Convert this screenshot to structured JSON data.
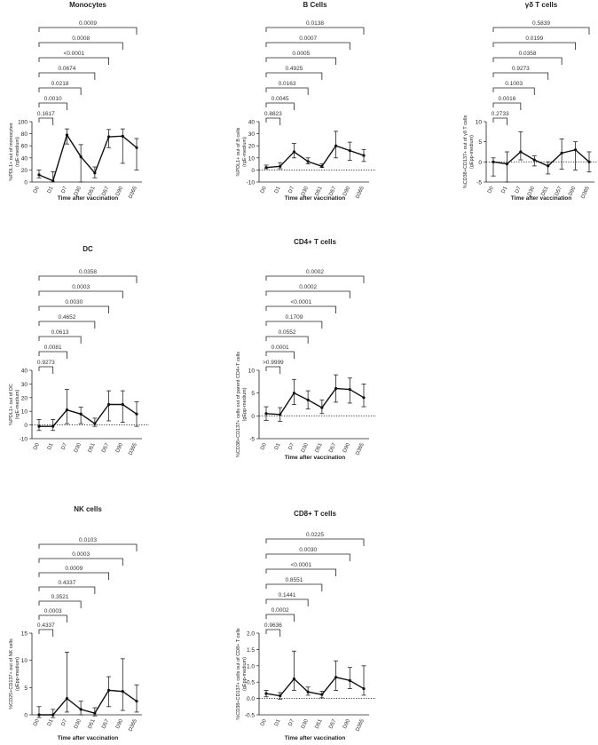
{
  "chart_data": [
    {
      "type": "line",
      "title": "Monocytes",
      "ylabel_lines": [
        "%PDL1+ out of monocytes",
        "(rgE-medium)"
      ],
      "xlabel": "Time after vaccination",
      "categories": [
        "D0",
        "D1",
        "D7",
        "D30",
        "D51",
        "D57",
        "D90",
        "D365"
      ],
      "values": [
        12,
        2,
        78,
        42,
        15,
        75,
        76,
        57
      ],
      "err_low": [
        5,
        2,
        15,
        42,
        8,
        18,
        45,
        37
      ],
      "err_high": [
        8,
        15,
        10,
        20,
        10,
        12,
        12,
        15
      ],
      "ylim": [
        0,
        100
      ],
      "yticks": [
        "0",
        "20",
        "40",
        "60",
        "80",
        "100"
      ],
      "zero_line": false,
      "comparisons": [
        {
          "to": "D1",
          "p": "0.1617"
        },
        {
          "to": "D7",
          "p": "0.0010"
        },
        {
          "to": "D30",
          "p": "0.0218"
        },
        {
          "to": "D51",
          "p": "0.0674"
        },
        {
          "to": "D57",
          "p": "<0.0001"
        },
        {
          "to": "D90",
          "p": "0.0008"
        },
        {
          "to": "D365",
          "p": "0.0009"
        }
      ]
    },
    {
      "type": "line",
      "title": "B Cells",
      "ylabel_lines": [
        "%PDL1+ out of B cells",
        "(rgE-medium)"
      ],
      "xlabel": "Time after vaccination",
      "categories": [
        "D0",
        "D1",
        "D7",
        "D30",
        "D51",
        "D57",
        "D90",
        "D365"
      ],
      "values": [
        2,
        3,
        15,
        7,
        3,
        20,
        16,
        12
      ],
      "err_low": [
        1,
        2,
        5,
        2,
        1,
        10,
        8,
        5
      ],
      "err_high": [
        2,
        3,
        7,
        3,
        2,
        12,
        7,
        5
      ],
      "ylim": [
        -10,
        40
      ],
      "yticks": [
        "-10",
        "0",
        "10",
        "20",
        "30",
        "40"
      ],
      "zero_line": true,
      "comparisons": [
        {
          "to": "D1",
          "p": "0.8823"
        },
        {
          "to": "D7",
          "p": "0.0045"
        },
        {
          "to": "D30",
          "p": "0.0163"
        },
        {
          "to": "D51",
          "p": "0.4925"
        },
        {
          "to": "D57",
          "p": "0.0005"
        },
        {
          "to": "D90",
          "p": "0.0007"
        },
        {
          "to": "D365",
          "p": "0.0138"
        }
      ]
    },
    {
      "type": "line",
      "title": "γδ T cells",
      "ylabel_lines": [
        "%CD38+CD137+ out of γδ T cells",
        "(gEpp-medium)"
      ],
      "xlabel": "Time after vaccination",
      "categories": [
        "D0",
        "D1",
        "D7",
        "D30",
        "D51",
        "D57",
        "D90",
        "D365"
      ],
      "values": [
        0,
        -0.5,
        2.5,
        0.5,
        -1,
        2.2,
        3,
        0
      ],
      "err_low": [
        3.5,
        4.5,
        2,
        1.5,
        2,
        4,
        5,
        2.5
      ],
      "err_high": [
        1,
        3,
        5,
        1,
        1,
        3.5,
        2,
        2.5
      ],
      "ylim": [
        -5,
        10
      ],
      "yticks": [
        "-5",
        "0",
        "5",
        "10"
      ],
      "zero_line": true,
      "comparisons": [
        {
          "to": "D1",
          "p": "0.2733"
        },
        {
          "to": "D7",
          "p": "0.0016"
        },
        {
          "to": "D30",
          "p": "0.1003"
        },
        {
          "to": "D51",
          "p": "0.9273"
        },
        {
          "to": "D57",
          "p": "0.0358"
        },
        {
          "to": "D90",
          "p": "0.0199"
        },
        {
          "to": "D365",
          "p": "0.5839"
        }
      ]
    },
    {
      "type": "line",
      "title": "DC",
      "ylabel_lines": [
        "%PDL1+ out of DC",
        "(rgE-medium)"
      ],
      "xlabel": "",
      "categories": [
        "D0",
        "D1",
        "D7",
        "D30",
        "D51",
        "D57",
        "D90",
        "D365"
      ],
      "values": [
        -1,
        -1,
        11,
        8,
        1,
        15,
        15,
        8
      ],
      "err_low": [
        3,
        3,
        10,
        7,
        2,
        12,
        13,
        9
      ],
      "err_high": [
        5,
        5,
        15,
        5,
        4,
        10,
        10,
        9
      ],
      "ylim": [
        -10,
        40
      ],
      "yticks": [
        "-10",
        "0",
        "10",
        "20",
        "30",
        "40"
      ],
      "zero_line": true,
      "comparisons": [
        {
          "to": "D1",
          "p": "0.9273"
        },
        {
          "to": "D7",
          "p": "0.0081"
        },
        {
          "to": "D30",
          "p": "0.0613"
        },
        {
          "to": "D51",
          "p": "0.4652"
        },
        {
          "to": "D57",
          "p": "0.0030"
        },
        {
          "to": "D90",
          "p": "0.0003"
        },
        {
          "to": "D365",
          "p": "0.0358"
        }
      ]
    },
    {
      "type": "line",
      "title": "CD4+ T cells",
      "ylabel_lines": [
        "%CD38+CD137+ cells out of parent CD4+T cells",
        "(gEpp-medium)"
      ],
      "xlabel": "Time after vaccination",
      "categories": [
        "D0",
        "D1",
        "D7",
        "D30",
        "D51",
        "D57",
        "D90",
        "D365"
      ],
      "values": [
        0.5,
        0.3,
        5,
        3.5,
        1.8,
        6,
        5.8,
        4
      ],
      "err_low": [
        1.5,
        1.5,
        2.5,
        2,
        1.3,
        3,
        3,
        2
      ],
      "err_high": [
        1.5,
        1.5,
        3,
        2,
        1.7,
        3,
        2.5,
        3
      ],
      "ylim": [
        -5,
        10
      ],
      "yticks": [
        "-5",
        "0",
        "5",
        "10"
      ],
      "zero_line": true,
      "comparisons": [
        {
          "to": "D1",
          "p": ">0.9999"
        },
        {
          "to": "D7",
          "p": "0.0001"
        },
        {
          "to": "D30",
          "p": "0.0552"
        },
        {
          "to": "D51",
          "p": "0.1709"
        },
        {
          "to": "D57",
          "p": "<0.0001"
        },
        {
          "to": "D90",
          "p": "0.0002"
        },
        {
          "to": "D365",
          "p": "0.0002"
        }
      ]
    },
    {
      "type": "line",
      "title": "NK cells",
      "ylabel_lines": [
        "%CD25+CD137+ out of NK cells",
        "(gEpp-medium)"
      ],
      "xlabel": "Time after vaccination",
      "categories": [
        "D0",
        "D1",
        "D7",
        "D30",
        "D51",
        "D57",
        "D90",
        "D365"
      ],
      "values": [
        0,
        0,
        3,
        1,
        0.3,
        4.5,
        4.3,
        2.5
      ],
      "err_low": [
        0.5,
        0.5,
        2.5,
        1,
        0.5,
        3,
        3.5,
        2
      ],
      "err_high": [
        1.5,
        1,
        8.5,
        1.5,
        1,
        2.5,
        6,
        3
      ],
      "ylim": [
        0,
        15
      ],
      "yticks": [
        "0",
        "5",
        "10",
        "15"
      ],
      "zero_line": false,
      "comparisons": [
        {
          "to": "D1",
          "p": "0.4337"
        },
        {
          "to": "D7",
          "p": "0.0003"
        },
        {
          "to": "D30",
          "p": "0.3521"
        },
        {
          "to": "D51",
          "p": "0.4337"
        },
        {
          "to": "D57",
          "p": "0.0009"
        },
        {
          "to": "D90",
          "p": "0.0003"
        },
        {
          "to": "D365",
          "p": "0.0103"
        }
      ]
    },
    {
      "type": "line",
      "title": "CD8+ T cells",
      "ylabel_lines": [
        "%CD38+CD137+ cells out of CD8+ T cells",
        "(gEpp-medium)"
      ],
      "xlabel": "Time after vaccination",
      "categories": [
        "D0",
        "D1",
        "D7",
        "D30",
        "D51",
        "D57",
        "D90",
        "D365"
      ],
      "values": [
        0.15,
        0.08,
        0.6,
        0.2,
        0.12,
        0.65,
        0.55,
        0.3
      ],
      "err_low": [
        0.1,
        0.1,
        0.35,
        0.1,
        0.1,
        0.4,
        0.25,
        0.2
      ],
      "err_high": [
        0.1,
        0.1,
        0.85,
        0.15,
        0.1,
        0.5,
        0.4,
        0.7
      ],
      "ylim": [
        -0.5,
        2.0
      ],
      "yticks": [
        "-0.5",
        "0.0",
        "0.5",
        "1.0",
        "1.5",
        "2.0"
      ],
      "zero_line": true,
      "comparisons": [
        {
          "to": "D1",
          "p": "0.9636"
        },
        {
          "to": "D7",
          "p": "0.0002"
        },
        {
          "to": "D30",
          "p": "0.1441"
        },
        {
          "to": "D51",
          "p": "0.8551"
        },
        {
          "to": "D57",
          "p": "<0.0001"
        },
        {
          "to": "D90",
          "p": "0.0030"
        },
        {
          "to": "D365",
          "p": "0.0225"
        }
      ]
    }
  ]
}
